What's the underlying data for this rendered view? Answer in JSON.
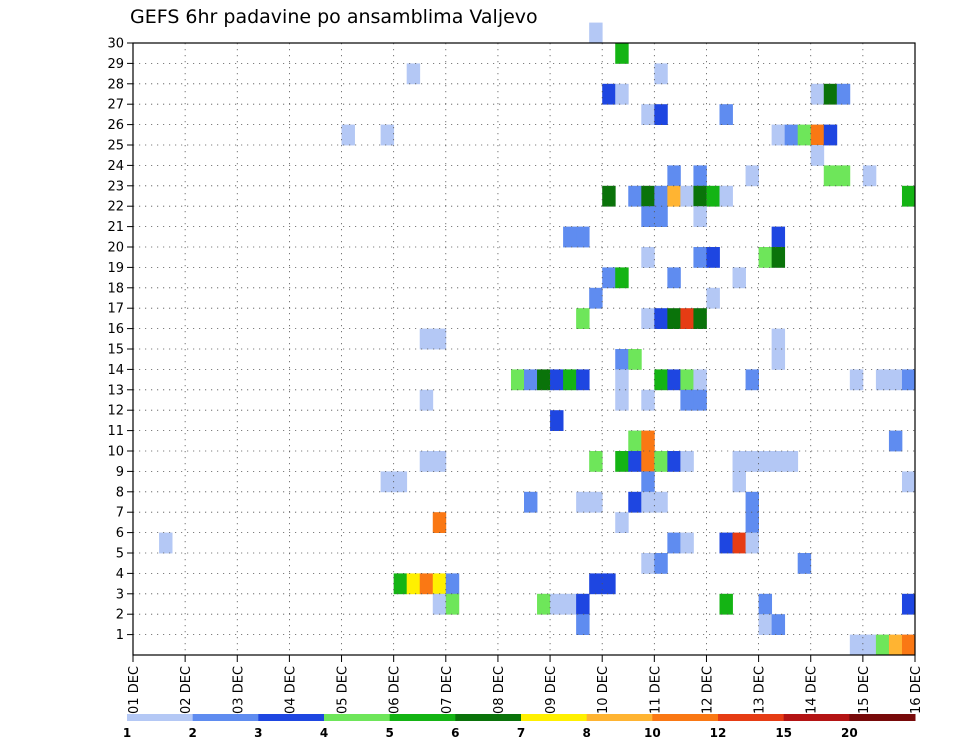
{
  "title": "GEFS 6hr padavine po ansamblima Valjevo",
  "chart_data": {
    "type": "heatmap",
    "title": "GEFS 6hr padavine po ansamblima Valjevo",
    "x_tick_labels": [
      "01 DEC",
      "02 DEC",
      "03 DEC",
      "04 DEC",
      "05 DEC",
      "06 DEC",
      "07 DEC",
      "08 DEC",
      "09 DEC",
      "10 DEC",
      "11 DEC",
      "12 DEC",
      "13 DEC",
      "14 DEC",
      "15 DEC",
      "16 DEC"
    ],
    "y_tick_labels": [
      "1",
      "2",
      "3",
      "4",
      "5",
      "6",
      "7",
      "8",
      "9",
      "10",
      "11",
      "12",
      "13",
      "14",
      "15",
      "16",
      "17",
      "18",
      "19",
      "20",
      "21",
      "22",
      "23",
      "24",
      "25",
      "26",
      "27",
      "28",
      "29",
      "30"
    ],
    "x_unit": "6-hour step from 01 DEC",
    "x_range": [
      0,
      60
    ],
    "y_range": [
      0,
      30
    ],
    "grid": "dotted",
    "colorbar": {
      "labels": [
        "1",
        "2",
        "3",
        "4",
        "5",
        "6",
        "7",
        "8",
        "10",
        "12",
        "15",
        "20"
      ],
      "colors": [
        "#b4c8f5",
        "#5f8cf0",
        "#1e46e1",
        "#6ee65a",
        "#14b414",
        "#0a730a",
        "#fff000",
        "#ffb432",
        "#fa7814",
        "#e63c14",
        "#b41414",
        "#780a0a"
      ]
    },
    "cells": [
      [
        35,
        30,
        0
      ],
      [
        37,
        29,
        4
      ],
      [
        21,
        28,
        0
      ],
      [
        40,
        28,
        0
      ],
      [
        36,
        27,
        2
      ],
      [
        37,
        27,
        0
      ],
      [
        52,
        27,
        0
      ],
      [
        53,
        27,
        5
      ],
      [
        54,
        27,
        1
      ],
      [
        39,
        26,
        0
      ],
      [
        40,
        26,
        2
      ],
      [
        45,
        26,
        1
      ],
      [
        16,
        25,
        0
      ],
      [
        19,
        25,
        0
      ],
      [
        49,
        25,
        0
      ],
      [
        50,
        25,
        1
      ],
      [
        51,
        25,
        3
      ],
      [
        52,
        25,
        8
      ],
      [
        53,
        25,
        2
      ],
      [
        52,
        24,
        0
      ],
      [
        41,
        23,
        1
      ],
      [
        43,
        23,
        1
      ],
      [
        47,
        23,
        0
      ],
      [
        53,
        23,
        3
      ],
      [
        54,
        23,
        3
      ],
      [
        56,
        23,
        0
      ],
      [
        36,
        22,
        5
      ],
      [
        38,
        22,
        1
      ],
      [
        39,
        22,
        5
      ],
      [
        40,
        22,
        1
      ],
      [
        41,
        22,
        7
      ],
      [
        42,
        22,
        0
      ],
      [
        43,
        22,
        5
      ],
      [
        44,
        22,
        4
      ],
      [
        45,
        22,
        0
      ],
      [
        59,
        22,
        4
      ],
      [
        39,
        21,
        1
      ],
      [
        40,
        21,
        1
      ],
      [
        43,
        21,
        0
      ],
      [
        33,
        20,
        1
      ],
      [
        34,
        20,
        1
      ],
      [
        49,
        20,
        2
      ],
      [
        39,
        19,
        0
      ],
      [
        43,
        19,
        1
      ],
      [
        44,
        19,
        2
      ],
      [
        48,
        19,
        3
      ],
      [
        49,
        19,
        5
      ],
      [
        36,
        18,
        1
      ],
      [
        37,
        18,
        4
      ],
      [
        41,
        18,
        1
      ],
      [
        46,
        18,
        0
      ],
      [
        35,
        17,
        1
      ],
      [
        44,
        17,
        0
      ],
      [
        34,
        16,
        3
      ],
      [
        39,
        16,
        0
      ],
      [
        40,
        16,
        2
      ],
      [
        41,
        16,
        5
      ],
      [
        42,
        16,
        9
      ],
      [
        43,
        16,
        5
      ],
      [
        22,
        15,
        0
      ],
      [
        23,
        15,
        0
      ],
      [
        49,
        15,
        0
      ],
      [
        37,
        14,
        1
      ],
      [
        38,
        14,
        3
      ],
      [
        49,
        14,
        0
      ],
      [
        29,
        13,
        3
      ],
      [
        30,
        13,
        1
      ],
      [
        31,
        13,
        5
      ],
      [
        32,
        13,
        2
      ],
      [
        33,
        13,
        4
      ],
      [
        34,
        13,
        2
      ],
      [
        37,
        13,
        0
      ],
      [
        40,
        13,
        4
      ],
      [
        41,
        13,
        2
      ],
      [
        42,
        13,
        3
      ],
      [
        43,
        13,
        0
      ],
      [
        47,
        13,
        1
      ],
      [
        55,
        13,
        0
      ],
      [
        57,
        13,
        0
      ],
      [
        58,
        13,
        0
      ],
      [
        59,
        13,
        1
      ],
      [
        22,
        12,
        0
      ],
      [
        37,
        12,
        0
      ],
      [
        39,
        12,
        0
      ],
      [
        42,
        12,
        1
      ],
      [
        43,
        12,
        1
      ],
      [
        32,
        11,
        2
      ],
      [
        38,
        10,
        3
      ],
      [
        39,
        10,
        8
      ],
      [
        58,
        10,
        1
      ],
      [
        22,
        9,
        0
      ],
      [
        23,
        9,
        0
      ],
      [
        35,
        9,
        3
      ],
      [
        37,
        9,
        4
      ],
      [
        38,
        9,
        2
      ],
      [
        39,
        9,
        8
      ],
      [
        40,
        9,
        3
      ],
      [
        41,
        9,
        2
      ],
      [
        42,
        9,
        0
      ],
      [
        46,
        9,
        0
      ],
      [
        47,
        9,
        0
      ],
      [
        48,
        9,
        0
      ],
      [
        49,
        9,
        0
      ],
      [
        50,
        9,
        0
      ],
      [
        19,
        8,
        0
      ],
      [
        20,
        8,
        0
      ],
      [
        39,
        8,
        1
      ],
      [
        46,
        8,
        0
      ],
      [
        59,
        8,
        0
      ],
      [
        30,
        7,
        1
      ],
      [
        34,
        7,
        0
      ],
      [
        35,
        7,
        0
      ],
      [
        38,
        7,
        2
      ],
      [
        39,
        7,
        0
      ],
      [
        40,
        7,
        0
      ],
      [
        47,
        7,
        1
      ],
      [
        23,
        6,
        8
      ],
      [
        37,
        6,
        0
      ],
      [
        47,
        6,
        1
      ],
      [
        2,
        5,
        0
      ],
      [
        41,
        5,
        1
      ],
      [
        42,
        5,
        0
      ],
      [
        45,
        5,
        2
      ],
      [
        46,
        5,
        9
      ],
      [
        47,
        5,
        0
      ],
      [
        39,
        4,
        0
      ],
      [
        40,
        4,
        1
      ],
      [
        51,
        4,
        1
      ],
      [
        20,
        3,
        4
      ],
      [
        21,
        3,
        6
      ],
      [
        22,
        3,
        8
      ],
      [
        23,
        3,
        6
      ],
      [
        24,
        3,
        1
      ],
      [
        35,
        3,
        2
      ],
      [
        36,
        3,
        2
      ],
      [
        23,
        2,
        0
      ],
      [
        24,
        2,
        3
      ],
      [
        31,
        2,
        3
      ],
      [
        32,
        2,
        0
      ],
      [
        33,
        2,
        0
      ],
      [
        34,
        2,
        2
      ],
      [
        45,
        2,
        4
      ],
      [
        48,
        2,
        1
      ],
      [
        59,
        2,
        2
      ],
      [
        34,
        1,
        1
      ],
      [
        48,
        1,
        0
      ],
      [
        49,
        1,
        1
      ],
      [
        55,
        0,
        0
      ],
      [
        56,
        0,
        0
      ],
      [
        57,
        0,
        3
      ],
      [
        58,
        0,
        7
      ],
      [
        59,
        0,
        8
      ]
    ]
  }
}
